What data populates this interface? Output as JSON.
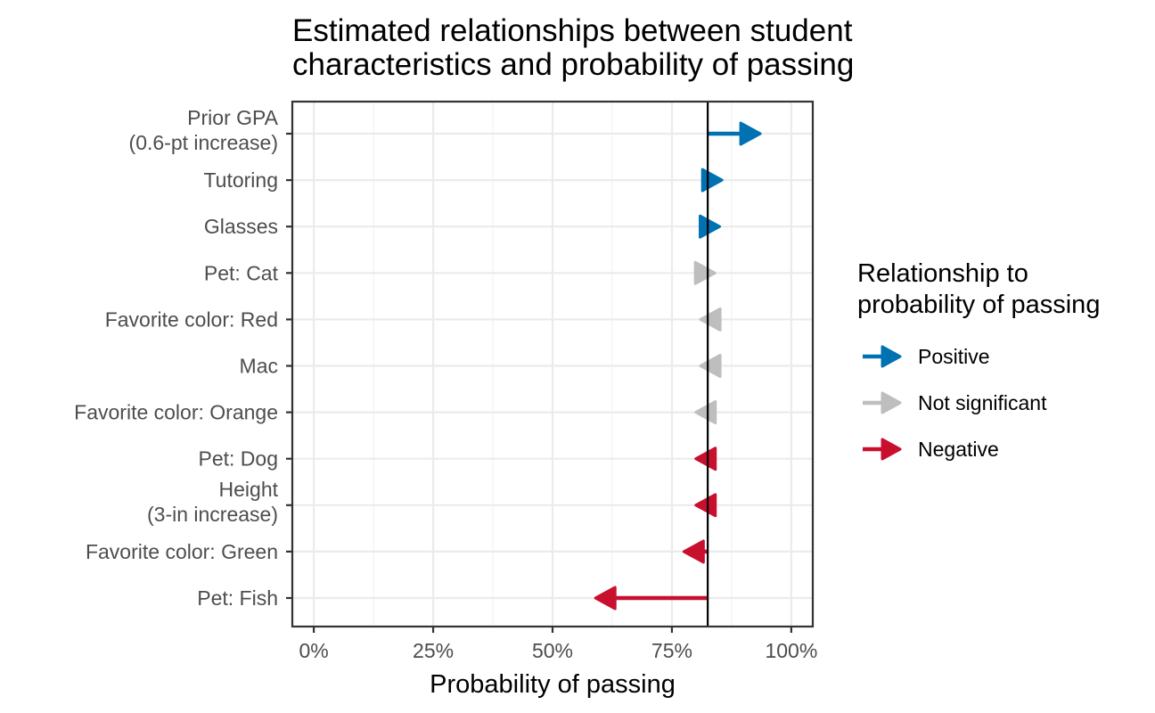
{
  "chart_data": {
    "type": "arrow",
    "title": [
      "Estimated relationships between student",
      "characteristics and probability of passing"
    ],
    "xlabel": "Probability of passing",
    "xlim": [
      -0.045,
      1.045
    ],
    "x_ticks": [
      0,
      0.25,
      0.5,
      0.75,
      1.0
    ],
    "x_tick_labels": [
      "0%",
      "25%",
      "50%",
      "75%",
      "100%"
    ],
    "baseline": 0.825,
    "grid": true,
    "categories": [
      [
        "Prior GPA",
        "(0.6-pt increase)"
      ],
      [
        "Tutoring"
      ],
      [
        "Glasses"
      ],
      [
        "Pet: Cat"
      ],
      [
        "Favorite color: Red"
      ],
      [
        "Mac"
      ],
      [
        "Favorite color: Orange"
      ],
      [
        "Pet: Dog"
      ],
      [
        "Height",
        "(3-in increase)"
      ],
      [
        "Favorite color: Green"
      ],
      [
        "Pet: Fish"
      ]
    ],
    "estimates": [
      {
        "start": 0.825,
        "end": 0.935,
        "relationship": "Positive"
      },
      {
        "start": 0.825,
        "end": 0.855,
        "relationship": "Positive"
      },
      {
        "start": 0.825,
        "end": 0.85,
        "relationship": "Positive"
      },
      {
        "start": 0.825,
        "end": 0.84,
        "relationship": "Not significant"
      },
      {
        "start": 0.825,
        "end": 0.81,
        "relationship": "Not significant"
      },
      {
        "start": 0.825,
        "end": 0.81,
        "relationship": "Not significant"
      },
      {
        "start": 0.825,
        "end": 0.8,
        "relationship": "Not significant"
      },
      {
        "start": 0.825,
        "end": 0.8,
        "relationship": "Negative"
      },
      {
        "start": 0.825,
        "end": 0.8,
        "relationship": "Negative"
      },
      {
        "start": 0.825,
        "end": 0.775,
        "relationship": "Negative"
      },
      {
        "start": 0.825,
        "end": 0.59,
        "relationship": "Negative"
      }
    ],
    "legend": {
      "title": [
        "Relationship to",
        "probability of passing"
      ],
      "position": "right",
      "entries": [
        {
          "name": "Positive",
          "color": "#0072b2"
        },
        {
          "name": "Not significant",
          "color": "#bebebe"
        },
        {
          "name": "Negative",
          "color": "#c8102e"
        }
      ]
    }
  }
}
